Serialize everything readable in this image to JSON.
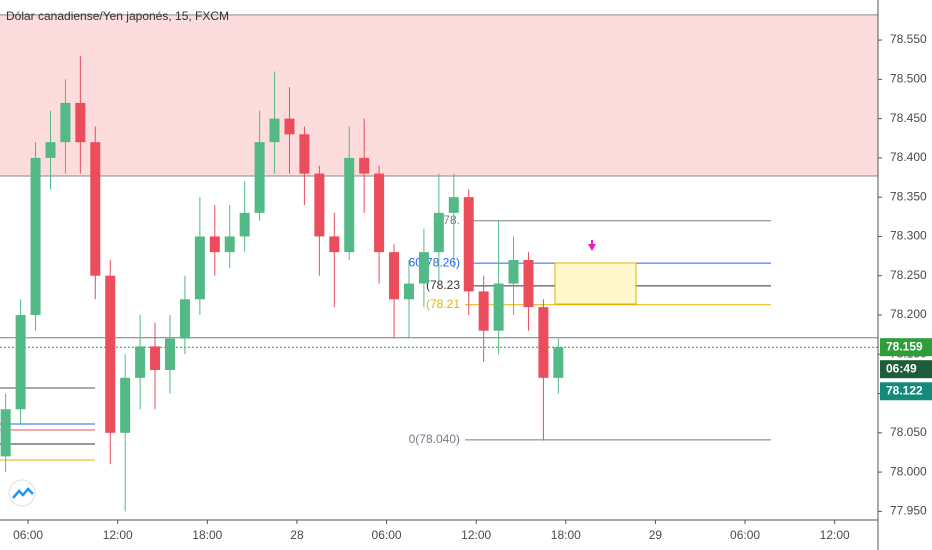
{
  "chart_data": {
    "type": "candlestick",
    "title": "Dólar canadiense/Yen japonés, 15, FXCM",
    "up_color": "#53b987",
    "down_color": "#eb4d5c",
    "x": [
      4.5,
      5.5,
      6.5,
      7.5,
      8.5,
      9.5,
      10.5,
      11.5,
      12.5,
      13.5,
      14.5,
      15.5,
      16.5,
      17.5,
      18.5,
      19.5,
      20.5,
      21.5,
      22.5,
      23.5,
      24.5,
      25.5,
      26.5,
      27.5,
      28.5,
      29.5,
      30.5,
      31.5,
      32.5,
      33.5,
      34.5,
      35.5,
      36.5,
      37.5,
      38.5,
      39.5,
      40.5,
      41.5
    ],
    "open": [
      78.02,
      78.08,
      78.2,
      78.4,
      78.42,
      78.47,
      78.42,
      78.25,
      78.05,
      78.12,
      78.16,
      78.13,
      78.17,
      78.22,
      78.3,
      78.28,
      78.3,
      78.33,
      78.42,
      78.45,
      78.43,
      78.38,
      78.3,
      78.28,
      78.4,
      78.38,
      78.28,
      78.22,
      78.24,
      78.28,
      78.33,
      78.35,
      78.23,
      78.18,
      78.24,
      78.27,
      78.21,
      78.12
    ],
    "high": [
      78.1,
      78.22,
      78.42,
      78.46,
      78.5,
      78.53,
      78.44,
      78.27,
      78.15,
      78.2,
      78.19,
      78.2,
      78.25,
      78.35,
      78.34,
      78.34,
      78.37,
      78.46,
      78.51,
      78.49,
      78.44,
      78.39,
      78.33,
      78.44,
      78.45,
      78.39,
      78.29,
      78.27,
      78.31,
      78.38,
      78.38,
      78.36,
      78.25,
      78.32,
      78.3,
      78.28,
      78.22,
      78.17
    ],
    "low": [
      78.0,
      78.06,
      78.18,
      78.36,
      78.38,
      78.38,
      78.22,
      78.01,
      77.95,
      78.08,
      78.08,
      78.1,
      78.15,
      78.2,
      78.25,
      78.26,
      78.28,
      78.32,
      78.38,
      78.38,
      78.34,
      78.25,
      78.21,
      78.27,
      78.33,
      78.24,
      78.17,
      78.17,
      78.21,
      78.24,
      78.26,
      78.2,
      78.14,
      78.15,
      78.2,
      78.18,
      78.04,
      78.1
    ],
    "close": [
      78.08,
      78.2,
      78.4,
      78.42,
      78.47,
      78.42,
      78.25,
      78.05,
      78.12,
      78.16,
      78.13,
      78.17,
      78.22,
      78.3,
      78.28,
      78.3,
      78.33,
      78.42,
      78.45,
      78.43,
      78.38,
      78.3,
      78.28,
      78.4,
      78.38,
      78.28,
      78.22,
      78.24,
      78.28,
      78.33,
      78.35,
      78.23,
      78.18,
      78.24,
      78.27,
      78.21,
      78.12,
      78.159
    ],
    "xlim": [
      4.12,
      62.9
    ],
    "xticks": [
      {
        "value": 6,
        "label": "06:00"
      },
      {
        "value": 12,
        "label": "12:00"
      },
      {
        "value": 18,
        "label": "18:00"
      },
      {
        "value": 24,
        "label": "28"
      },
      {
        "value": 30,
        "label": "06:00"
      },
      {
        "value": 36,
        "label": "12:00"
      },
      {
        "value": 42,
        "label": "18:00"
      },
      {
        "value": 48,
        "label": "29"
      },
      {
        "value": 54,
        "label": "06:00"
      },
      {
        "value": 60,
        "label": "12:00"
      }
    ],
    "ylim": [
      77.939,
      78.601
    ],
    "yticks": [
      {
        "value": 77.95,
        "label": "77.950"
      },
      {
        "value": 78.0,
        "label": "78.000"
      },
      {
        "value": 78.05,
        "label": "78.050"
      },
      {
        "value": 78.1,
        "label": "78.100"
      },
      {
        "value": 78.15,
        "label": "78.150"
      },
      {
        "value": 78.2,
        "label": "78.200"
      },
      {
        "value": 78.25,
        "label": "78.250"
      },
      {
        "value": 78.3,
        "label": "78.300"
      },
      {
        "value": 78.35,
        "label": "78.350"
      },
      {
        "value": 78.4,
        "label": "78.400"
      },
      {
        "value": 78.45,
        "label": "78.450"
      },
      {
        "value": 78.5,
        "label": "78.500"
      },
      {
        "value": 78.55,
        "label": "78.550"
      }
    ],
    "zone": {
      "top": 78.582,
      "bottom": 78.377,
      "color": "#fcdcdc"
    },
    "levels": [
      {
        "value": 78.171,
        "color": "#787b86"
      },
      {
        "value": 78.159,
        "color": "#2e9e3a"
      }
    ],
    "fib": [
      {
        "value": 78.32,
        "label": "1(78.",
        "color": "#787b86"
      },
      {
        "value": 78.266,
        "label": "60(78.26)",
        "color": "#2962ff"
      },
      {
        "value": 78.237,
        "label": "(78.23",
        "color": "#333333"
      },
      {
        "value": 78.213,
        "label": "(78.21",
        "color": "#e0b400"
      },
      {
        "value": 78.041,
        "label": "0(78.040)",
        "color": "#787b86"
      }
    ],
    "last_price": 78.159,
    "countdown": "06:49",
    "other_price": 78.122
  }
}
